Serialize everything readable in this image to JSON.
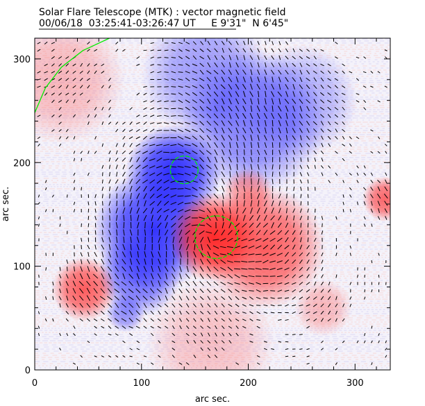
{
  "chart_data": {
    "type": "heatmap",
    "title": "Solar Flare Telescope (MTK) : vector magnetic field",
    "subtitle": "00/06/18  03:25:41-03:26:47 UT     E 9'31\"  N 6'45\"",
    "xlabel": "arc sec.",
    "ylabel": "arc sec.",
    "xlim": [
      0,
      333
    ],
    "ylim": [
      0,
      320
    ],
    "xticks": [
      "0",
      "100",
      "200",
      "300"
    ],
    "yticks": [
      "0",
      "100",
      "200",
      "300"
    ],
    "colors": {
      "positive": "#ff2a2a",
      "negative": "#2a2aff",
      "contour": "#00ee00",
      "vectors": "#000000"
    },
    "field_regions": [
      {
        "polarity": "negative",
        "x": 130,
        "y": 190,
        "r": 30,
        "strength": 1.0
      },
      {
        "polarity": "negative",
        "x": 112,
        "y": 135,
        "r": 38,
        "strength": 0.95
      },
      {
        "polarity": "negative",
        "x": 98,
        "y": 92,
        "r": 26,
        "strength": 0.7
      },
      {
        "polarity": "negative",
        "x": 205,
        "y": 240,
        "r": 45,
        "strength": 0.6
      },
      {
        "polarity": "negative",
        "x": 160,
        "y": 285,
        "r": 40,
        "strength": 0.45
      },
      {
        "polarity": "negative",
        "x": 250,
        "y": 260,
        "r": 35,
        "strength": 0.35
      },
      {
        "polarity": "negative",
        "x": 85,
        "y": 55,
        "r": 12,
        "strength": 0.5
      },
      {
        "polarity": "positive",
        "x": 168,
        "y": 128,
        "r": 28,
        "strength": 1.0
      },
      {
        "polarity": "positive",
        "x": 215,
        "y": 118,
        "r": 38,
        "strength": 0.75
      },
      {
        "polarity": "positive",
        "x": 200,
        "y": 170,
        "r": 16,
        "strength": 0.5
      },
      {
        "polarity": "positive",
        "x": 46,
        "y": 78,
        "r": 20,
        "strength": 0.75
      },
      {
        "polarity": "positive",
        "x": 328,
        "y": 165,
        "r": 14,
        "strength": 0.7
      },
      {
        "polarity": "positive",
        "x": 25,
        "y": 280,
        "r": 40,
        "strength": 0.3
      },
      {
        "polarity": "positive",
        "x": 165,
        "y": 25,
        "r": 40,
        "strength": 0.25
      },
      {
        "polarity": "positive",
        "x": 270,
        "y": 60,
        "r": 18,
        "strength": 0.3
      }
    ],
    "contours": [
      {
        "shape": "circle",
        "x": 140,
        "y": 193,
        "r": 13
      },
      {
        "shape": "circle",
        "x": 170,
        "y": 128,
        "r": 20
      },
      {
        "shape": "line",
        "points": [
          [
            0,
            248
          ],
          [
            10,
            272
          ],
          [
            25,
            292
          ],
          [
            45,
            308
          ],
          [
            70,
            320
          ]
        ]
      }
    ]
  }
}
